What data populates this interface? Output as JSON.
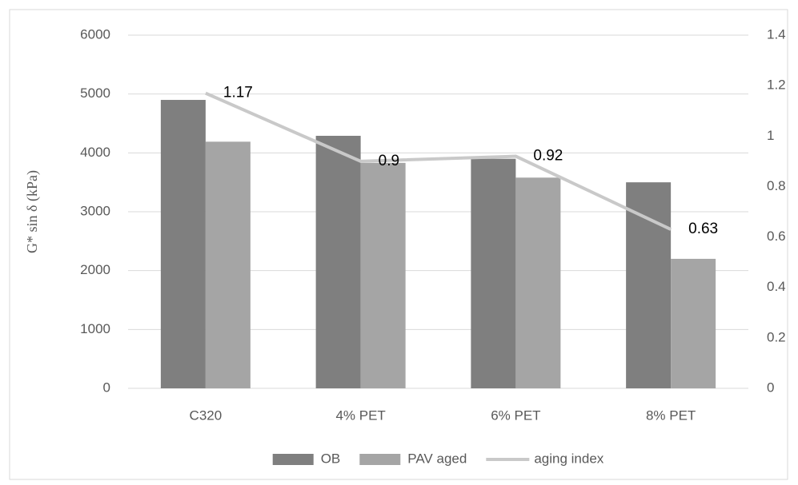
{
  "chart_data": {
    "type": "bar",
    "y_label": "G* sin δ (kPa)",
    "categories": [
      "C320",
      "4% PET",
      "6% PET",
      "8% PET"
    ],
    "series": [
      {
        "name": "OB",
        "color": "#7f7f7f",
        "values": [
          4900,
          4290,
          3900,
          3500
        ]
      },
      {
        "name": "PAV aged",
        "color": "#a5a5a5",
        "values": [
          4190,
          3830,
          3580,
          2200
        ]
      },
      {
        "name": "aging index",
        "type": "line",
        "axis": "y2",
        "color": "#c9c9c9",
        "values": [
          1.17,
          0.9,
          0.92,
          0.63
        ],
        "data_labels": true
      }
    ],
    "ylim": [
      0,
      6000
    ],
    "yticks": [
      0,
      1000,
      2000,
      3000,
      4000,
      5000,
      6000
    ],
    "y2lim": [
      0,
      1.4
    ],
    "y2ticks": [
      0,
      0.2,
      0.4,
      0.6,
      0.8,
      1,
      1.2,
      1.4
    ],
    "grid": true,
    "legend": "bottom"
  }
}
